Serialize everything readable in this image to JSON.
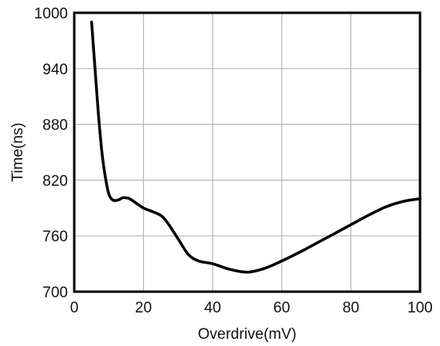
{
  "chart_data": {
    "type": "line",
    "title": "",
    "xlabel": "Overdrive(mV)",
    "ylabel": "Time(ns)",
    "xlim": [
      0,
      100
    ],
    "ylim": [
      700,
      1000
    ],
    "xticks": [
      0,
      20,
      40,
      60,
      80,
      100
    ],
    "yticks": [
      700,
      760,
      820,
      880,
      940,
      1000
    ],
    "grid": true,
    "legend": "none",
    "line_color": "#000000",
    "grid_color": "#b8b8b8",
    "series": [
      {
        "x": [
          5,
          6,
          7,
          8,
          9,
          10,
          11,
          12,
          13,
          14,
          15,
          16,
          18,
          20,
          22,
          25,
          27,
          30,
          33,
          36,
          40,
          45,
          50,
          55,
          60,
          65,
          70,
          75,
          80,
          85,
          90,
          95,
          100
        ],
        "values": [
          990,
          940,
          890,
          850,
          823,
          805,
          799,
          798,
          799,
          801,
          801,
          800,
          795,
          790,
          787,
          782,
          774,
          757,
          740,
          733,
          730,
          724,
          721,
          725,
          733,
          742,
          752,
          762,
          772,
          782,
          791,
          797,
          800
        ]
      }
    ]
  }
}
